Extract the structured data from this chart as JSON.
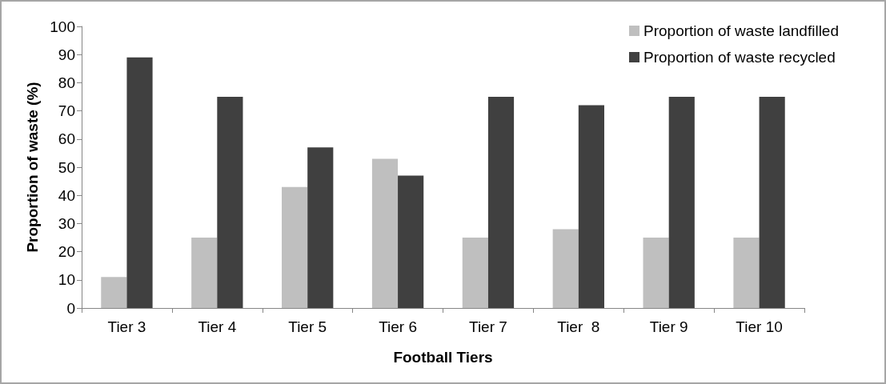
{
  "chart_data": {
    "type": "bar",
    "xlabel": "Football Tiers",
    "ylabel": "Proportion of waste (%)",
    "categories": [
      "Tier 3",
      "Tier 4",
      "Tier 5",
      "Tier 6",
      "Tier 7",
      "Tier  8",
      "Tier 9",
      "Tier 10"
    ],
    "series": [
      {
        "name": "Proportion of waste landfilled",
        "color": "#bfbfbf",
        "values": [
          11,
          25,
          43,
          53,
          25,
          28,
          25,
          25
        ]
      },
      {
        "name": "Proportion of waste recycled",
        "color": "#404040",
        "values": [
          89,
          75,
          57,
          47,
          75,
          72,
          75,
          75
        ]
      }
    ],
    "ylim": [
      0,
      100
    ],
    "yticks": [
      0,
      10,
      20,
      30,
      40,
      50,
      60,
      70,
      80,
      90,
      100
    ],
    "grid": false,
    "legend": "top right"
  }
}
